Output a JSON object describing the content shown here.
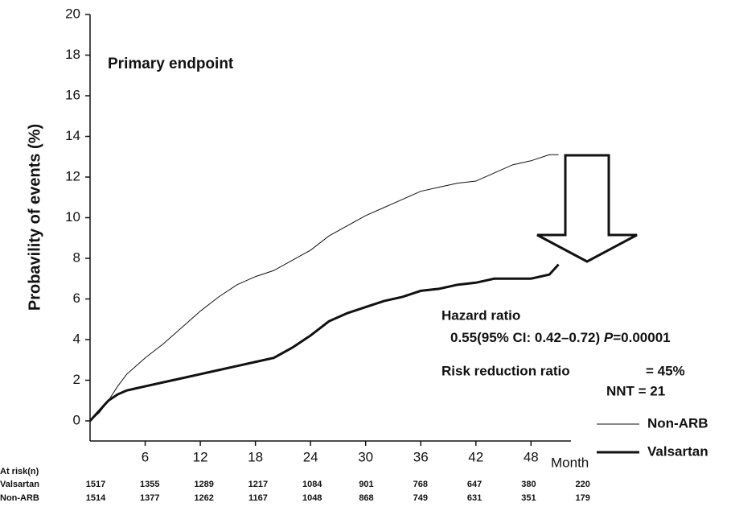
{
  "chart_data": {
    "type": "line",
    "title": "Primary  endpoint",
    "ylabel": "Probavility of events (%)",
    "xlabel": "Month",
    "xlim": [
      0,
      52
    ],
    "ylim": [
      0,
      20
    ],
    "xticks": [
      6,
      12,
      18,
      24,
      30,
      36,
      42,
      48
    ],
    "yticks": [
      0,
      2,
      4,
      6,
      8,
      10,
      12,
      14,
      16,
      18,
      20
    ],
    "x": [
      0,
      1,
      2,
      3,
      4,
      5,
      6,
      8,
      10,
      12,
      14,
      16,
      18,
      20,
      22,
      24,
      26,
      28,
      30,
      32,
      34,
      36,
      38,
      40,
      42,
      44,
      46,
      48,
      50,
      51
    ],
    "series": [
      {
        "name": "Non-ARB",
        "color": "#111111",
        "width": 1,
        "values": [
          0,
          0.4,
          1.0,
          1.7,
          2.3,
          2.7,
          3.1,
          3.8,
          4.6,
          5.4,
          6.1,
          6.7,
          7.1,
          7.4,
          7.9,
          8.4,
          9.1,
          9.6,
          10.1,
          10.5,
          10.9,
          11.3,
          11.5,
          11.7,
          11.8,
          12.2,
          12.6,
          12.8,
          13.1,
          13.1
        ]
      },
      {
        "name": "Valsartan",
        "color": "#111111",
        "width": 3,
        "values": [
          0,
          0.5,
          1.0,
          1.3,
          1.5,
          1.6,
          1.7,
          1.9,
          2.1,
          2.3,
          2.5,
          2.7,
          2.9,
          3.1,
          3.6,
          4.2,
          4.9,
          5.3,
          5.6,
          5.9,
          6.1,
          6.4,
          6.5,
          6.7,
          6.8,
          7.0,
          7.0,
          7.0,
          7.2,
          7.7
        ]
      }
    ],
    "annotations": {
      "hazard_title": "Hazard ratio",
      "hazard_value": "0.55(95% CI: 0.42–0.72)",
      "p_symbol": "P",
      "p_value": "=0.00001",
      "rrr_label": "Risk reduction ratio",
      "rrr_value": "=  45%",
      "nnt": "NNT  =  21"
    },
    "at_risk": {
      "label": "At risk(n)",
      "rows": [
        {
          "name": "Valsartan",
          "values": [
            1517,
            1355,
            1289,
            1217,
            1084,
            901,
            768,
            647,
            380,
            220
          ]
        },
        {
          "name": "Non-ARB",
          "values": [
            1514,
            1377,
            1262,
            1167,
            1048,
            868,
            749,
            631,
            351,
            179
          ]
        }
      ]
    }
  }
}
